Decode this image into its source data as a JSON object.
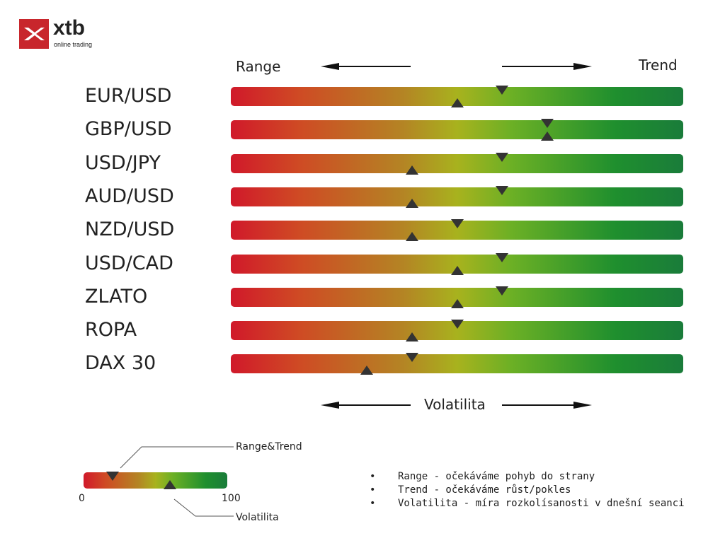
{
  "logo": {
    "name": "xtb",
    "tagline": "online trading",
    "brand_color": "#c8262c"
  },
  "chart_data": {
    "type": "bar",
    "scale": [
      0,
      100
    ],
    "categories": [
      "EUR/USD",
      "GBP/USD",
      "USD/JPY",
      "AUD/USD",
      "NZD/USD",
      "USD/CAD",
      "ZLATO",
      "ROPA",
      "DAX 30"
    ],
    "series": [
      {
        "name": "Range&Trend",
        "marker": "down-triangle",
        "values": [
          60,
          70,
          60,
          60,
          50,
          60,
          60,
          50,
          40
        ]
      },
      {
        "name": "Volatilita",
        "marker": "up-triangle",
        "values": [
          50,
          70,
          40,
          40,
          40,
          50,
          50,
          40,
          30
        ]
      }
    ],
    "top_left_label": "Range",
    "top_right_label": "Trend",
    "bottom_label": "Volatilita",
    "gradient_colors": [
      "#d0192a",
      "#a8b21e",
      "#1a7c3a"
    ]
  },
  "legend": {
    "trend_label": "Range&Trend",
    "vol_label": "Volatilita",
    "min": "0",
    "max": "100",
    "trend_value": 20,
    "vol_value": 60
  },
  "notes": [
    {
      "bullet": "•",
      "text": "Range - očekáváme pohyb do strany"
    },
    {
      "bullet": "•",
      "text": "Trend - očekáváme růst/pokles"
    },
    {
      "bullet": "•",
      "text": "Volatilita - míra rozkolísanosti v dnešní seanci"
    }
  ]
}
